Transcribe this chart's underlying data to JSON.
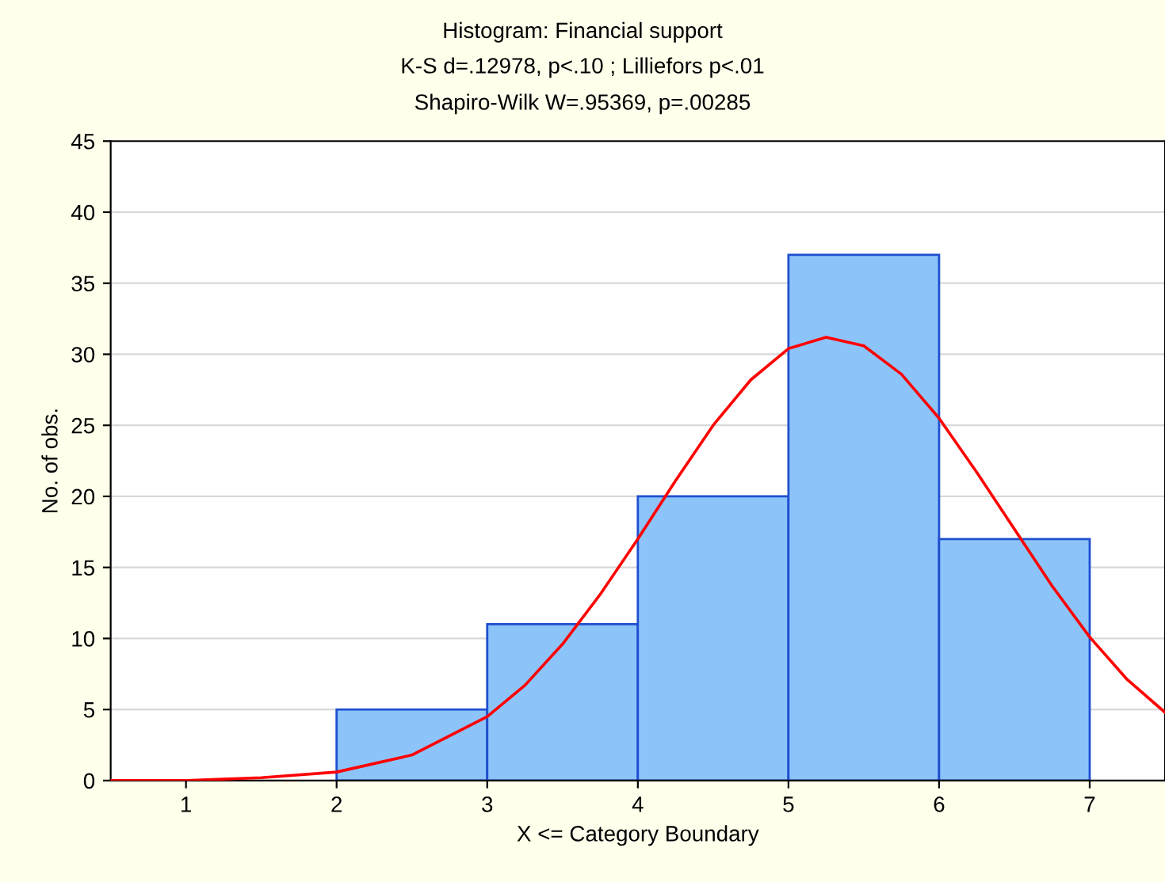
{
  "chart_data": {
    "type": "histogram",
    "title": "Histogram: Financial support",
    "subtitle": "K-S d=.12978, p<.10 ; Lilliefors p<.01\nShapiro-Wilk W=.95369, p=.00285",
    "xlabel": "X <= Category Boundary",
    "ylabel": "No. of obs.",
    "bins": [
      1,
      2,
      3,
      4,
      5,
      6,
      7
    ],
    "values": [
      0,
      5,
      11,
      20,
      37,
      17
    ],
    "color": "#8cc4fa",
    "series": [
      {
        "type": "line",
        "color": "#ff0000",
        "x": [
          0.5,
          1,
          1.5,
          2,
          2.5,
          3,
          3.25,
          3.5,
          3.75,
          4,
          4.25,
          4.5,
          4.75,
          5,
          5.25,
          5.5,
          5.75,
          6,
          6.25,
          6.5,
          6.75,
          7,
          7.25,
          7.5
        ],
        "values": [
          0,
          0,
          0.2,
          0.6,
          1.8,
          4.5,
          6.7,
          9.6,
          13.1,
          17,
          21.1,
          25,
          28.2,
          30.4,
          31.2,
          30.6,
          28.6,
          25.5,
          21.7,
          17.7,
          13.7,
          10.1,
          7.1,
          4.8
        ]
      }
    ],
    "xlim": [
      0.5,
      7.5
    ],
    "ylim": [
      0,
      45
    ],
    "xticks": [
      1,
      2,
      3,
      4,
      5,
      6,
      7
    ],
    "yticks": [
      0,
      5,
      10,
      15,
      20,
      25,
      30,
      35,
      40,
      45
    ],
    "grid": "y"
  }
}
